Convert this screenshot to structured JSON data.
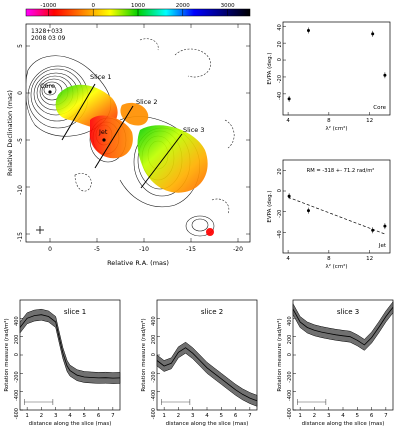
{
  "colorbar": {
    "tick_labels": [
      "-1000",
      "0",
      "1000",
      "2000",
      "3000"
    ],
    "ticks": [
      -1000,
      0,
      1000,
      2000,
      3000
    ],
    "range": [
      -1500,
      3500
    ],
    "colors": [
      "#ff00ff",
      "#ff0000",
      "#ff8000",
      "#ffff00",
      "#00d000",
      "#00ffff",
      "#0000ff",
      "#000080",
      "#000000"
    ]
  },
  "map": {
    "source_label": "1328+033",
    "date_label": "2008 03 09",
    "xlabel": "Relative R.A. (mas)",
    "ylabel": "Relative Declination (mas)",
    "xticks": [
      "0",
      "-5",
      "-10",
      "-15",
      "-20"
    ],
    "yticks": [
      "5",
      "0",
      "-5",
      "-10",
      "-15"
    ],
    "core_label": "Core",
    "jet_label": "Jet",
    "slice_labels": [
      "Slice 1",
      "Slice 2",
      "Slice 3"
    ]
  },
  "chart_data": [
    {
      "type": "scatter",
      "panel": "core-evpa",
      "ylabel": "EVPA (deg.)",
      "xlabel": "λ² (cm²)",
      "annotation": "Core",
      "xlim": [
        3.5,
        14
      ],
      "ylim": [
        -65,
        45
      ],
      "xticks": [
        "4",
        "8",
        "12"
      ],
      "yticks": [
        "40",
        "20",
        "0",
        "-20",
        "-40"
      ],
      "points": [
        {
          "x": 4.1,
          "y": -46
        },
        {
          "x": 6.0,
          "y": 35
        },
        {
          "x": 12.3,
          "y": 31
        },
        {
          "x": 13.5,
          "y": -18
        }
      ]
    },
    {
      "type": "scatter",
      "panel": "jet-evpa",
      "ylabel": "EVPA (deg.)",
      "xlabel": "λ² (cm²)",
      "annotation": "Jet",
      "fit_label": "RM = -318 +- 71.2 rad/m²",
      "xlim": [
        3.5,
        14
      ],
      "ylim": [
        -60,
        30
      ],
      "xticks": [
        "4",
        "8",
        "12"
      ],
      "yticks": [
        "20",
        "0",
        "-20",
        "-40"
      ],
      "points": [
        {
          "x": 4.1,
          "y": -5
        },
        {
          "x": 6.0,
          "y": -19
        },
        {
          "x": 12.3,
          "y": -38
        },
        {
          "x": 13.5,
          "y": -34
        }
      ],
      "fit": {
        "x": [
          4.0,
          13.6
        ],
        "y": [
          -6,
          -42
        ]
      }
    },
    {
      "type": "line",
      "panel": "slice-1",
      "title": "slice 1",
      "ylabel": "Rotation measure (rad/m²)",
      "xlabel": "distance along the slice (mas)",
      "xlim": [
        0.5,
        7.5
      ],
      "ylim": [
        -600,
        600
      ],
      "xticks": [
        "1",
        "2",
        "3",
        "4",
        "5",
        "6",
        "7"
      ],
      "yticks": [
        "400",
        "200",
        "0",
        "-200",
        "-400",
        "-600"
      ],
      "x": [
        0.5,
        1.0,
        1.5,
        2.0,
        2.5,
        3.0,
        3.2,
        3.5,
        3.8,
        4.0,
        4.5,
        5.0,
        5.5,
        6.0,
        6.5,
        7.0,
        7.5
      ],
      "y": [
        300,
        400,
        430,
        440,
        420,
        360,
        220,
        20,
        -120,
        -170,
        -220,
        -240,
        -245,
        -250,
        -248,
        -252,
        -250
      ],
      "err": 60,
      "scale_bar": [
        0.8,
        2.8
      ]
    },
    {
      "type": "line",
      "panel": "slice-2",
      "title": "slice 2",
      "ylabel": "Rotation measure (rad/m²)",
      "xlabel": "distance along the slice (mas)",
      "xlim": [
        0.5,
        7.5
      ],
      "ylim": [
        -600,
        600
      ],
      "xticks": [
        "1",
        "2",
        "3",
        "4",
        "5",
        "6",
        "7"
      ],
      "yticks": [
        "400",
        "200",
        "0",
        "-200",
        "-400",
        "-600"
      ],
      "x": [
        0.5,
        1.0,
        1.5,
        2.0,
        2.5,
        3.0,
        3.5,
        4.0,
        4.5,
        5.0,
        5.5,
        6.0,
        6.5,
        7.0,
        7.5
      ],
      "y": [
        -60,
        -120,
        -90,
        30,
        80,
        20,
        -60,
        -140,
        -200,
        -260,
        -320,
        -380,
        -430,
        -470,
        -500
      ],
      "err": 60,
      "scale_bar": [
        0.8,
        2.8
      ]
    },
    {
      "type": "line",
      "panel": "slice-3",
      "title": "slice 3",
      "ylabel": "Rotation measure (rad/m²)",
      "xlabel": "distance along the slice (mas)",
      "xlim": [
        0.5,
        7.5
      ],
      "ylim": [
        -600,
        600
      ],
      "xticks": [
        "1",
        "2",
        "3",
        "4",
        "5",
        "6",
        "7"
      ],
      "yticks": [
        "400",
        "200",
        "0",
        "-200",
        "-400",
        "-600"
      ],
      "x": [
        0.5,
        1.0,
        1.5,
        2.0,
        2.5,
        3.0,
        3.5,
        4.0,
        4.5,
        5.0,
        5.5,
        6.0,
        6.5,
        7.0,
        7.5
      ],
      "y": [
        500,
        360,
        300,
        270,
        250,
        235,
        220,
        210,
        200,
        160,
        110,
        190,
        300,
        420,
        520
      ],
      "err": 60,
      "scale_bar": [
        0.8,
        2.8
      ]
    }
  ]
}
